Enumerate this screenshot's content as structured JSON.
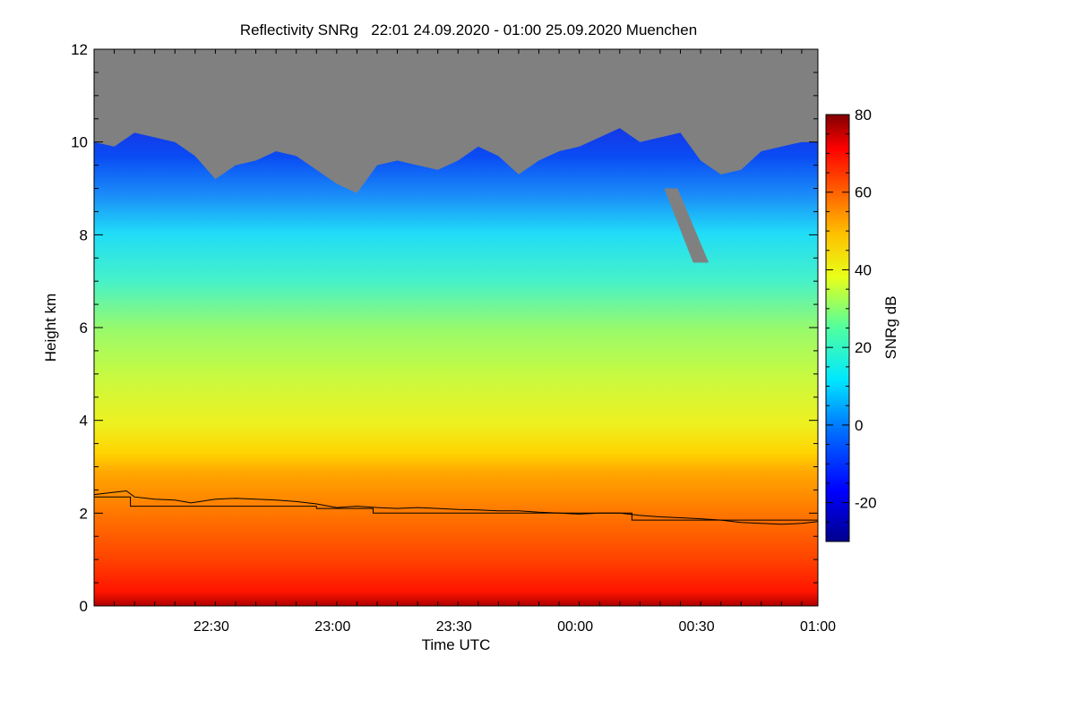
{
  "chart_data": {
    "type": "heatmap",
    "title": "Reflectivity SNRg   22:01 24.09.2020 - 01:00 25.09.2020 Muenchen",
    "xlabel": "Time UTC",
    "ylabel": "Height km",
    "xlim": [
      "22:01",
      "01:00"
    ],
    "ylim": [
      0,
      12
    ],
    "x_ticks": [
      {
        "label": "22:30",
        "minutes": 29
      },
      {
        "label": "23:00",
        "minutes": 59
      },
      {
        "label": "23:30",
        "minutes": 89
      },
      {
        "label": "00:00",
        "minutes": 119
      },
      {
        "label": "00:30",
        "minutes": 149
      },
      {
        "label": "01:00",
        "minutes": 179
      }
    ],
    "y_ticks": [
      0,
      2,
      4,
      6,
      8,
      10,
      12
    ],
    "colorbar": {
      "label": "SNRg dB",
      "range": [
        -30,
        80
      ],
      "ticks": [
        80,
        60,
        40,
        20,
        0,
        -20
      ]
    },
    "no_data_color": "#808080",
    "echo_top_km": [
      [
        0,
        10.0
      ],
      [
        5,
        9.9
      ],
      [
        10,
        10.2
      ],
      [
        15,
        10.1
      ],
      [
        20,
        10.0
      ],
      [
        25,
        9.7
      ],
      [
        30,
        9.2
      ],
      [
        35,
        9.5
      ],
      [
        40,
        9.6
      ],
      [
        45,
        9.8
      ],
      [
        50,
        9.7
      ],
      [
        55,
        9.4
      ],
      [
        60,
        9.1
      ],
      [
        65,
        8.9
      ],
      [
        70,
        9.5
      ],
      [
        75,
        9.6
      ],
      [
        80,
        9.5
      ],
      [
        85,
        9.4
      ],
      [
        90,
        9.6
      ],
      [
        95,
        9.9
      ],
      [
        100,
        9.7
      ],
      [
        105,
        9.3
      ],
      [
        110,
        9.6
      ],
      [
        115,
        9.8
      ],
      [
        120,
        9.9
      ],
      [
        125,
        10.1
      ],
      [
        130,
        10.3
      ],
      [
        135,
        10.0
      ],
      [
        140,
        10.1
      ],
      [
        145,
        10.2
      ],
      [
        150,
        9.6
      ],
      [
        155,
        9.3
      ],
      [
        160,
        9.4
      ],
      [
        165,
        9.8
      ],
      [
        170,
        9.9
      ],
      [
        175,
        10.0
      ],
      [
        179,
        10.0
      ]
    ],
    "gap_regions": [
      {
        "minutes": [
          141,
          152
        ],
        "height_km": [
          7.4,
          9.0
        ]
      }
    ],
    "layers_dBZ": [
      {
        "height_km": [
          0.0,
          0.2
        ],
        "snr_db": 72
      },
      {
        "height_km": [
          0.2,
          1.0
        ],
        "snr_db": 62
      },
      {
        "height_km": [
          1.0,
          2.0
        ],
        "snr_db": 56
      },
      {
        "height_km": [
          2.0,
          2.6
        ],
        "snr_db": 48
      },
      {
        "height_km": [
          2.6,
          4.0
        ],
        "snr_db": 38
      },
      {
        "height_km": [
          4.0,
          6.0
        ],
        "snr_db": 26
      },
      {
        "height_km": [
          6.0,
          7.5
        ],
        "snr_db": 14
      },
      {
        "height_km": [
          7.5,
          9.0
        ],
        "snr_db": 2
      },
      {
        "height_km": [
          9.0,
          10.4
        ],
        "snr_db": -14
      }
    ],
    "series": [
      {
        "x_minutes": [
          0,
          5,
          8,
          10,
          15,
          20,
          24,
          30,
          35,
          40,
          45,
          50,
          55,
          60,
          65,
          70,
          75,
          80,
          85,
          90,
          95,
          100,
          105,
          110,
          115,
          120,
          125,
          130,
          135,
          140,
          145,
          150,
          155,
          160,
          165,
          170,
          175,
          179
        ],
        "y_km": [
          2.4,
          2.45,
          2.48,
          2.35,
          2.3,
          2.28,
          2.22,
          2.3,
          2.32,
          2.3,
          2.28,
          2.25,
          2.2,
          2.12,
          2.15,
          2.12,
          2.1,
          2.12,
          2.1,
          2.08,
          2.07,
          2.05,
          2.05,
          2.02,
          2.0,
          1.98,
          2.0,
          2.0,
          1.95,
          1.92,
          1.9,
          1.88,
          1.85,
          1.8,
          1.78,
          1.76,
          1.78,
          1.82
        ]
      },
      {
        "x_minutes": [
          0,
          9,
          9,
          55,
          55,
          69,
          69,
          133,
          133,
          179
        ],
        "y_km": [
          2.35,
          2.35,
          2.15,
          2.15,
          2.1,
          2.1,
          2.0,
          2.0,
          1.85,
          1.85
        ]
      }
    ]
  }
}
